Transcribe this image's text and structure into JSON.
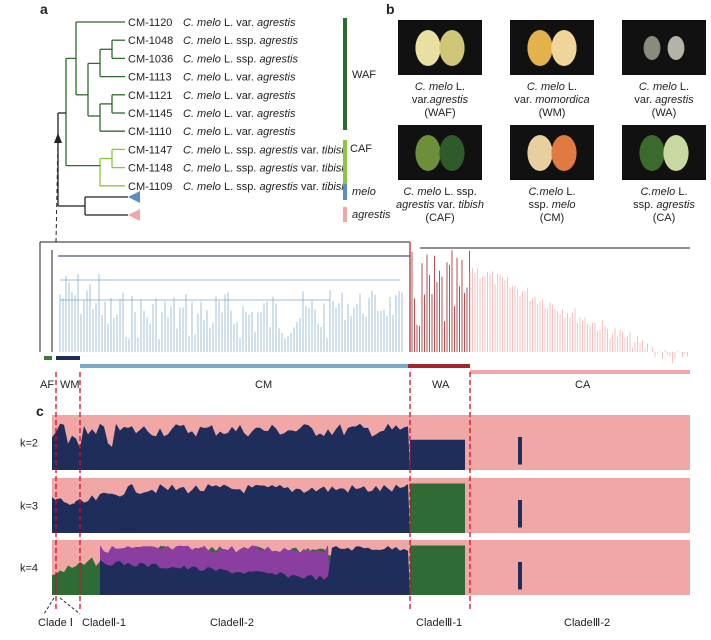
{
  "panels": {
    "a": "a",
    "b": "b",
    "c": "c"
  },
  "tree": {
    "leaves": [
      {
        "id": "CM-1120",
        "name": [
          {
            "text": "C. melo",
            "italic": true
          },
          {
            "text": " L. var. "
          },
          {
            "text": "agrestis",
            "italic": true
          }
        ]
      },
      {
        "id": "CM-1048",
        "name": [
          {
            "text": "C. melo",
            "italic": true
          },
          {
            "text": " L. ssp. "
          },
          {
            "text": "agrestis",
            "italic": true
          }
        ]
      },
      {
        "id": "CM-1036",
        "name": [
          {
            "text": "C. melo",
            "italic": true
          },
          {
            "text": " L. ssp. "
          },
          {
            "text": "agrestis",
            "italic": true
          }
        ]
      },
      {
        "id": "CM-1113",
        "name": [
          {
            "text": "C. melo",
            "italic": true
          },
          {
            "text": " L. var. "
          },
          {
            "text": "agrestis",
            "italic": true
          }
        ]
      },
      {
        "id": "CM-1121",
        "name": [
          {
            "text": "C. melo",
            "italic": true
          },
          {
            "text": " L. var. "
          },
          {
            "text": "agrestis",
            "italic": true
          }
        ]
      },
      {
        "id": "CM-1145",
        "name": [
          {
            "text": "C. melo",
            "italic": true
          },
          {
            "text": " L. var. "
          },
          {
            "text": "agrestis",
            "italic": true
          }
        ]
      },
      {
        "id": "CM-1110",
        "name": [
          {
            "text": "C. melo",
            "italic": true
          },
          {
            "text": " L. var. "
          },
          {
            "text": "agrestis",
            "italic": true
          }
        ]
      },
      {
        "id": "CM-1147",
        "name": [
          {
            "text": "C. melo",
            "italic": true
          },
          {
            "text": " L. ssp. "
          },
          {
            "text": "agrestis",
            "italic": true
          },
          {
            "text": " var. "
          },
          {
            "text": "tibish",
            "italic": true
          }
        ]
      },
      {
        "id": "CM-1148",
        "name": [
          {
            "text": "C. melo",
            "italic": true
          },
          {
            "text": " L. ssp. "
          },
          {
            "text": "agrestis",
            "italic": true
          },
          {
            "text": " var. "
          },
          {
            "text": "tibish",
            "italic": true
          }
        ]
      },
      {
        "id": "CM-1109",
        "name": [
          {
            "text": "C. melo",
            "italic": true
          },
          {
            "text": " L. ssp. "
          },
          {
            "text": "agrestis",
            "italic": true
          },
          {
            "text": " var. "
          },
          {
            "text": "tibish",
            "italic": true
          }
        ]
      }
    ],
    "groups": [
      "WAF",
      "CAF",
      "melo",
      "agrestis"
    ]
  },
  "photos": [
    {
      "lines": [
        [
          {
            "text": "C. melo",
            "italic": true
          },
          {
            "text": " L."
          }
        ],
        [
          {
            "text": "var."
          },
          {
            "text": "agrestis",
            "italic": true
          }
        ],
        [
          {
            "text": "(WAF)"
          }
        ]
      ]
    },
    {
      "lines": [
        [
          {
            "text": "C. melo",
            "italic": true
          },
          {
            "text": " L."
          }
        ],
        [
          {
            "text": "var. "
          },
          {
            "text": "momordica",
            "italic": true
          }
        ],
        [
          {
            "text": "(WM)"
          }
        ]
      ]
    },
    {
      "lines": [
        [
          {
            "text": "C. melo",
            "italic": true
          },
          {
            "text": " L."
          }
        ],
        [
          {
            "text": "var. "
          },
          {
            "text": "agrestis",
            "italic": true
          }
        ],
        [
          {
            "text": "(WA)"
          }
        ]
      ]
    },
    {
      "lines": [
        [
          {
            "text": "C. melo",
            "italic": true
          },
          {
            "text": " L. ssp."
          }
        ],
        [
          {
            "text": "agrestis",
            "italic": true
          },
          {
            "text": " var. "
          },
          {
            "text": "tibish",
            "italic": true
          }
        ],
        [
          {
            "text": "(CAF)"
          }
        ]
      ]
    },
    {
      "lines": [
        [
          {
            "text": "C.melo",
            "italic": true
          },
          {
            "text": " L."
          }
        ],
        [
          {
            "text": "ssp. "
          },
          {
            "text": "melo",
            "italic": true
          }
        ],
        [
          {
            "text": "(CM)"
          }
        ]
      ]
    },
    {
      "lines": [
        [
          {
            "text": "C.melo",
            "italic": true
          },
          {
            "text": " L."
          }
        ],
        [
          {
            "text": "ssp. "
          },
          {
            "text": "agrestis",
            "italic": true
          }
        ],
        [
          {
            "text": "(CA)"
          }
        ]
      ]
    }
  ],
  "tree_groups": [
    "AF",
    "WM",
    "CM",
    "WA",
    "CA"
  ],
  "structure": {
    "k": [
      "k=2",
      "k=3",
      "k=4"
    ],
    "clades": [
      "Clade Ⅰ",
      "CladeⅡ-1",
      "CladeⅡ-2",
      "CladeⅢ-1",
      "CladeⅢ-2"
    ]
  }
}
